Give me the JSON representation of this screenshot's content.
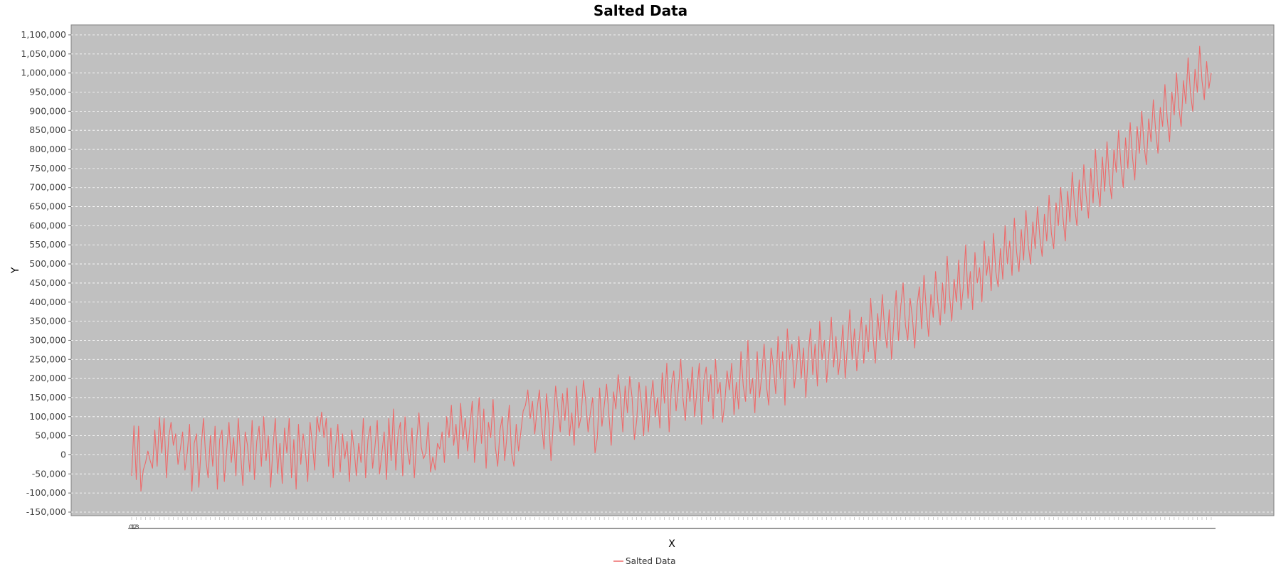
{
  "chart_data": {
    "type": "line",
    "title": "Salted Data",
    "xlabel": "X",
    "ylabel": "Y",
    "ylim": [
      -150000,
      1100000
    ],
    "ytick_step": 50000,
    "grid": true,
    "legend_position": "bottom-center",
    "colors": {
      "series": "#ee6a6a",
      "plot_background": "#c0c0c0",
      "grid": "#ffffff"
    },
    "x_tick_labels_visible": [
      "0",
      "1",
      "2",
      "3"
    ],
    "series": [
      {
        "name": "Salted Data",
        "x_start": 0,
        "x_step": 1,
        "values": [
          -55000,
          76000,
          -65000,
          75000,
          -95000,
          -40000,
          -20000,
          10000,
          -15000,
          -35000,
          65000,
          -30000,
          98000,
          5000,
          95000,
          -60000,
          45000,
          85000,
          25000,
          55000,
          -25000,
          15000,
          60000,
          -40000,
          5000,
          80000,
          -95000,
          30000,
          55000,
          -85000,
          20000,
          95000,
          -10000,
          -60000,
          50000,
          -30000,
          75000,
          -90000,
          40000,
          65000,
          -70000,
          10000,
          85000,
          -20000,
          45000,
          -55000,
          95000,
          5000,
          -80000,
          60000,
          25000,
          -45000,
          90000,
          -65000,
          35000,
          75000,
          -30000,
          100000,
          -15000,
          50000,
          -85000,
          20000,
          95000,
          -50000,
          30000,
          -75000,
          70000,
          5000,
          95000,
          -60000,
          40000,
          -90000,
          80000,
          -25000,
          55000,
          10000,
          -70000,
          85000,
          30000,
          -40000,
          100000,
          60000,
          112000,
          45000,
          95000,
          -30000,
          70000,
          -60000,
          20000,
          80000,
          -45000,
          55000,
          -10000,
          35000,
          -70000,
          65000,
          15000,
          -55000,
          30000,
          -20000,
          95000,
          -60000,
          40000,
          75000,
          -35000,
          20000,
          90000,
          -50000,
          5000,
          60000,
          -65000,
          95000,
          -15000,
          120000,
          -40000,
          55000,
          85000,
          -55000,
          100000,
          15000,
          -25000,
          70000,
          -60000,
          35000,
          110000,
          20000,
          -10000,
          5000,
          85000,
          -45000,
          -5000,
          -40000,
          30000,
          15000,
          60000,
          -20000,
          100000,
          45000,
          130000,
          25000,
          80000,
          -10000,
          135000,
          40000,
          95000,
          10000,
          75000,
          140000,
          -20000,
          60000,
          150000,
          30000,
          120000,
          -35000,
          85000,
          45000,
          145000,
          20000,
          -30000,
          65000,
          100000,
          -15000,
          50000,
          130000,
          5000,
          -30000,
          80000,
          10000,
          60000,
          115000,
          130000,
          170000,
          95000,
          140000,
          55000,
          120000,
          170000,
          75000,
          15000,
          160000,
          100000,
          -15000,
          85000,
          180000,
          120000,
          60000,
          160000,
          90000,
          175000,
          50000,
          110000,
          25000,
          180000,
          70000,
          100000,
          195000,
          140000,
          60000,
          110000,
          150000,
          5000,
          45000,
          175000,
          75000,
          130000,
          185000,
          105000,
          25000,
          165000,
          120000,
          210000,
          150000,
          60000,
          180000,
          110000,
          205000,
          150000,
          40000,
          90000,
          190000,
          135000,
          50000,
          180000,
          60000,
          140000,
          195000,
          100000,
          150000,
          70000,
          215000,
          135000,
          240000,
          60000,
          180000,
          220000,
          115000,
          175000,
          250000,
          145000,
          90000,
          200000,
          140000,
          230000,
          100000,
          170000,
          240000,
          80000,
          195000,
          230000,
          140000,
          210000,
          95000,
          250000,
          160000,
          190000,
          85000,
          135000,
          220000,
          170000,
          240000,
          105000,
          190000,
          120000,
          270000,
          180000,
          140000,
          300000,
          160000,
          200000,
          110000,
          270000,
          150000,
          210000,
          290000,
          180000,
          130000,
          280000,
          230000,
          160000,
          310000,
          200000,
          270000,
          130000,
          330000,
          250000,
          290000,
          175000,
          230000,
          310000,
          200000,
          280000,
          150000,
          260000,
          330000,
          210000,
          290000,
          180000,
          350000,
          250000,
          300000,
          190000,
          270000,
          360000,
          230000,
          310000,
          210000,
          260000,
          340000,
          200000,
          290000,
          380000,
          250000,
          330000,
          220000,
          300000,
          360000,
          240000,
          340000,
          270000,
          410000,
          310000,
          240000,
          370000,
          300000,
          420000,
          330000,
          280000,
          380000,
          250000,
          350000,
          430000,
          300000,
          390000,
          450000,
          340000,
          300000,
          410000,
          360000,
          280000,
          390000,
          440000,
          330000,
          470000,
          380000,
          310000,
          420000,
          360000,
          480000,
          400000,
          340000,
          450000,
          370000,
          520000,
          420000,
          350000,
          460000,
          400000,
          510000,
          380000,
          440000,
          550000,
          410000,
          480000,
          380000,
          530000,
          450000,
          490000,
          400000,
          560000,
          470000,
          520000,
          430000,
          580000,
          480000,
          440000,
          540000,
          460000,
          600000,
          500000,
          560000,
          470000,
          620000,
          530000,
          480000,
          590000,
          510000,
          640000,
          550000,
          500000,
          610000,
          540000,
          650000,
          570000,
          520000,
          630000,
          560000,
          680000,
          580000,
          540000,
          660000,
          600000,
          700000,
          620000,
          560000,
          690000,
          610000,
          740000,
          650000,
          600000,
          720000,
          640000,
          760000,
          680000,
          620000,
          750000,
          660000,
          800000,
          700000,
          650000,
          780000,
          690000,
          820000,
          720000,
          670000,
          800000,
          740000,
          850000,
          760000,
          700000,
          830000,
          750000,
          870000,
          780000,
          720000,
          860000,
          790000,
          900000,
          810000,
          760000,
          880000,
          820000,
          930000,
          850000,
          790000,
          910000,
          860000,
          970000,
          880000,
          820000,
          950000,
          890000,
          1000000,
          910000,
          860000,
          980000,
          920000,
          1040000,
          950000,
          900000,
          1010000,
          950000,
          1070000,
          980000,
          930000,
          1030000,
          960000,
          1000000
        ]
      }
    ]
  }
}
